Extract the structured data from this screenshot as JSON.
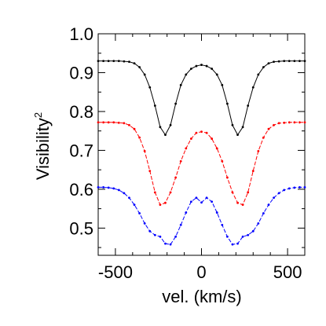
{
  "chart_data": {
    "type": "line",
    "xlabel": "vel. (km/s)",
    "ylabel": "Visibility",
    "ylabel_superscript": "2",
    "xlim": [
      -600,
      600
    ],
    "ylim": [
      0.43,
      1.0
    ],
    "xticks": [
      -500,
      0,
      500
    ],
    "xtick_labels": [
      "-500",
      "0",
      "500"
    ],
    "yticks": [
      0.5,
      0.6,
      0.7,
      0.8,
      0.9,
      1.0
    ],
    "ytick_labels": [
      "0.5",
      "0.6",
      "0.7",
      "0.8",
      "0.9",
      "1.0"
    ],
    "grid": false,
    "series": [
      {
        "color": "#000000",
        "x": [
          -600,
          -570,
          -540,
          -510,
          -480,
          -450,
          -420,
          -390,
          -360,
          -330,
          -300,
          -270,
          -240,
          -210,
          -180,
          -150,
          -120,
          -90,
          -60,
          -30,
          0,
          30,
          60,
          90,
          120,
          150,
          180,
          210,
          240,
          270,
          300,
          330,
          360,
          390,
          420,
          450,
          480,
          510,
          540,
          570,
          600
        ],
        "y": [
          0.93,
          0.93,
          0.93,
          0.93,
          0.93,
          0.929,
          0.928,
          0.924,
          0.914,
          0.895,
          0.862,
          0.815,
          0.76,
          0.74,
          0.765,
          0.82,
          0.868,
          0.895,
          0.91,
          0.917,
          0.92,
          0.917,
          0.91,
          0.895,
          0.868,
          0.82,
          0.765,
          0.74,
          0.76,
          0.815,
          0.862,
          0.895,
          0.914,
          0.924,
          0.928,
          0.929,
          0.93,
          0.93,
          0.93,
          0.93,
          0.93
        ]
      },
      {
        "color": "#ff0000",
        "x": [
          -600,
          -570,
          -540,
          -510,
          -480,
          -450,
          -420,
          -390,
          -360,
          -330,
          -300,
          -270,
          -240,
          -210,
          -180,
          -150,
          -120,
          -90,
          -60,
          -30,
          0,
          30,
          60,
          90,
          120,
          150,
          180,
          210,
          240,
          270,
          300,
          330,
          360,
          390,
          420,
          450,
          480,
          510,
          540,
          570,
          600
        ],
        "y": [
          0.772,
          0.772,
          0.772,
          0.772,
          0.771,
          0.77,
          0.765,
          0.755,
          0.733,
          0.698,
          0.647,
          0.592,
          0.56,
          0.565,
          0.592,
          0.63,
          0.672,
          0.705,
          0.73,
          0.745,
          0.748,
          0.745,
          0.73,
          0.705,
          0.672,
          0.63,
          0.592,
          0.565,
          0.56,
          0.592,
          0.647,
          0.698,
          0.733,
          0.755,
          0.765,
          0.77,
          0.771,
          0.772,
          0.772,
          0.772,
          0.772
        ]
      },
      {
        "color": "#0000ff",
        "x": [
          -600,
          -570,
          -540,
          -510,
          -480,
          -450,
          -420,
          -390,
          -360,
          -330,
          -300,
          -270,
          -240,
          -210,
          -180,
          -150,
          -120,
          -90,
          -60,
          -30,
          0,
          30,
          60,
          90,
          120,
          150,
          180,
          210,
          240,
          270,
          300,
          330,
          360,
          390,
          420,
          450,
          480,
          510,
          540,
          570,
          600
        ],
        "y": [
          0.605,
          0.605,
          0.604,
          0.602,
          0.598,
          0.59,
          0.578,
          0.56,
          0.538,
          0.512,
          0.492,
          0.482,
          0.478,
          0.46,
          0.458,
          0.478,
          0.508,
          0.54,
          0.568,
          0.578,
          0.566,
          0.578,
          0.568,
          0.54,
          0.508,
          0.478,
          0.458,
          0.46,
          0.478,
          0.482,
          0.492,
          0.512,
          0.538,
          0.56,
          0.578,
          0.59,
          0.598,
          0.602,
          0.604,
          0.605,
          0.605
        ]
      }
    ]
  }
}
